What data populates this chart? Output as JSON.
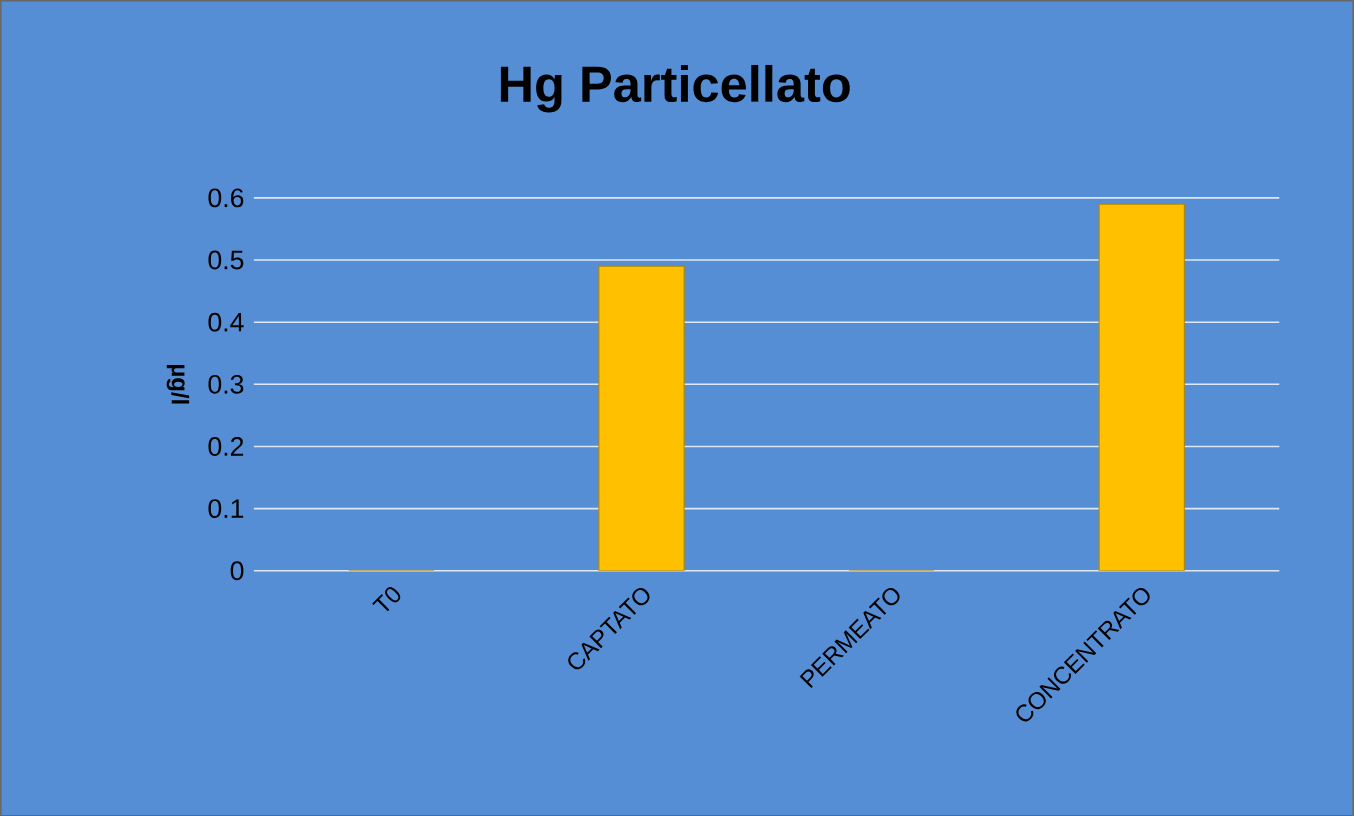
{
  "chart_data": {
    "type": "bar",
    "title": "Hg Particellato",
    "ylabel": "µg/l",
    "categories": [
      "T0",
      "CAPTATO",
      "PERMEATO",
      "CONCENTRATO"
    ],
    "values": [
      0,
      0.49,
      0,
      0.59
    ],
    "color": "#ffc000",
    "ylim": [
      0,
      0.6
    ],
    "yticks": [
      0,
      0.1,
      0.2,
      0.3,
      0.4,
      0.5,
      0.6
    ],
    "grid": "y"
  }
}
